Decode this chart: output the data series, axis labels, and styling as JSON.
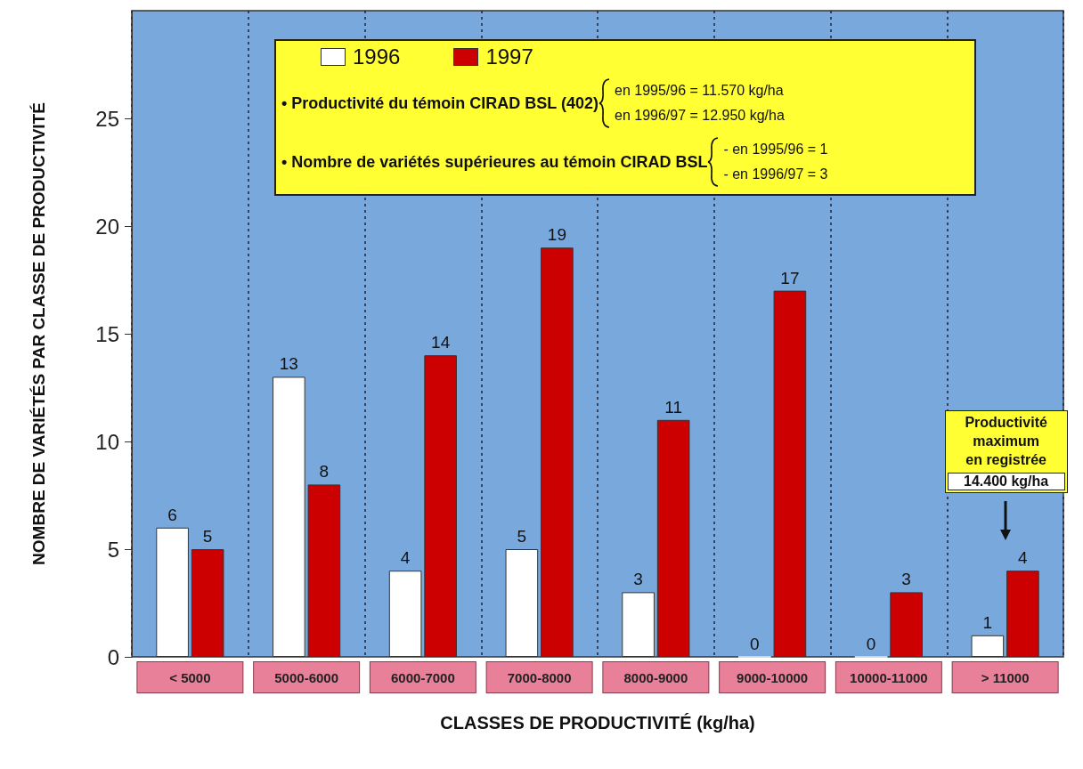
{
  "chart_data": {
    "type": "bar",
    "xlabel": "CLASSES DE PRODUCTIVITÉ (kg/ha)",
    "ylabel": "NOMBRE DE VARIÉTÉS PAR CLASSE DE PRODUCTIVITÉ",
    "categories": [
      "< 5000",
      "5000-6000",
      "6000-7000",
      "7000-8000",
      "8000-9000",
      "9000-10000",
      "10000-11000",
      "> 11000"
    ],
    "series": [
      {
        "name": "1996",
        "color": "#ffffff",
        "values": [
          6,
          13,
          4,
          5,
          3,
          0,
          0,
          1
        ]
      },
      {
        "name": "1997",
        "color": "#cc0000",
        "values": [
          5,
          8,
          14,
          19,
          11,
          17,
          3,
          4
        ]
      }
    ],
    "ylim": [
      0,
      30
    ],
    "yticks": [
      0,
      5,
      10,
      15,
      20,
      25
    ],
    "data_labels": true,
    "grid": "x",
    "legend": "top",
    "annotations": [
      "• Productivité du témoin CIRAD BSL (402)",
      "en 1995/96 = 11.570 kg/ha",
      "en 1996/97 = 12.950 kg/ha",
      "• Nombre de variétés supérieures au témoin CIRAD BSL",
      "- en 1995/96 = 1",
      "- en 1996/97 = 3",
      "Productivité\nmaximum\nen registrée",
      "14.400 kg/ha"
    ]
  }
}
